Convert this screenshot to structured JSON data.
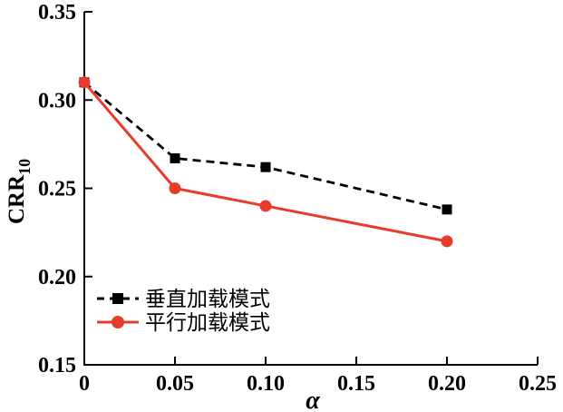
{
  "chart_data": {
    "type": "line",
    "title": "",
    "xlabel": "α",
    "ylabel": "CRR",
    "ylabel_subscript": "10",
    "xlim": [
      0,
      0.25
    ],
    "ylim": [
      0.15,
      0.35
    ],
    "x_ticks": [
      0,
      0.05,
      0.1,
      0.15,
      0.2,
      0.25
    ],
    "x_tick_labels": [
      "0",
      "0.05",
      "0.10",
      "0.15",
      "0.20",
      "0.25"
    ],
    "y_ticks": [
      0.15,
      0.2,
      0.25,
      0.3,
      0.35
    ],
    "y_tick_labels": [
      "0.15",
      "0.20",
      "0.25",
      "0.30",
      "0.35"
    ],
    "grid": false,
    "legend_position": "inside-lower-left",
    "axis_color": "#000000",
    "series": [
      {
        "name": "垂直加载模式",
        "color": "#000000",
        "line_style": "dashed",
        "marker": "square",
        "x": [
          0,
          0.05,
          0.1,
          0.2
        ],
        "y": [
          0.31,
          0.267,
          0.262,
          0.238
        ]
      },
      {
        "name": "平行加载模式",
        "color": "#e83b2a",
        "line_style": "solid",
        "marker": "circle",
        "x": [
          0,
          0.05,
          0.1,
          0.2
        ],
        "y": [
          0.31,
          0.25,
          0.24,
          0.22
        ]
      }
    ]
  }
}
